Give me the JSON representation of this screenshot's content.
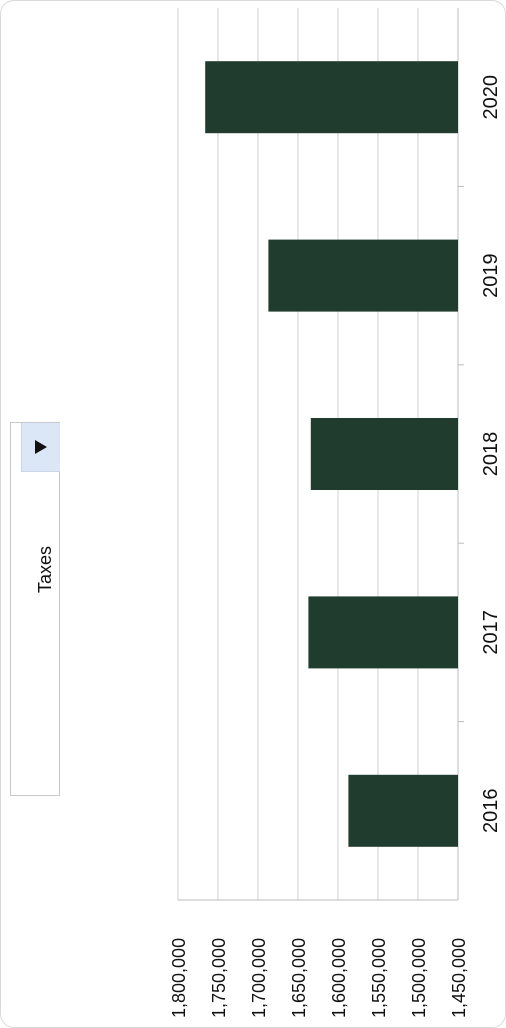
{
  "filter": {
    "label": "Taxes",
    "button_icon": "play-triangle-icon"
  },
  "chart_data": {
    "type": "bar",
    "categories": [
      "2016",
      "2017",
      "2018",
      "2019",
      "2020"
    ],
    "values": [
      1587000,
      1637000,
      1634000,
      1687000,
      1766000
    ],
    "ylim": [
      1450000,
      1800000
    ],
    "yticks": [
      1450000,
      1500000,
      1550000,
      1600000,
      1650000,
      1700000,
      1750000,
      1800000
    ],
    "ytick_labels": [
      "1,450,000",
      "1,500,000",
      "1,550,000",
      "1,600,000",
      "1,650,000",
      "1,700,000",
      "1,750,000",
      "1,800,000"
    ],
    "title": "",
    "xlabel": "",
    "ylabel": "",
    "grid": true,
    "bar_color": "#203c2e",
    "grid_color": "#d0d0d0"
  }
}
